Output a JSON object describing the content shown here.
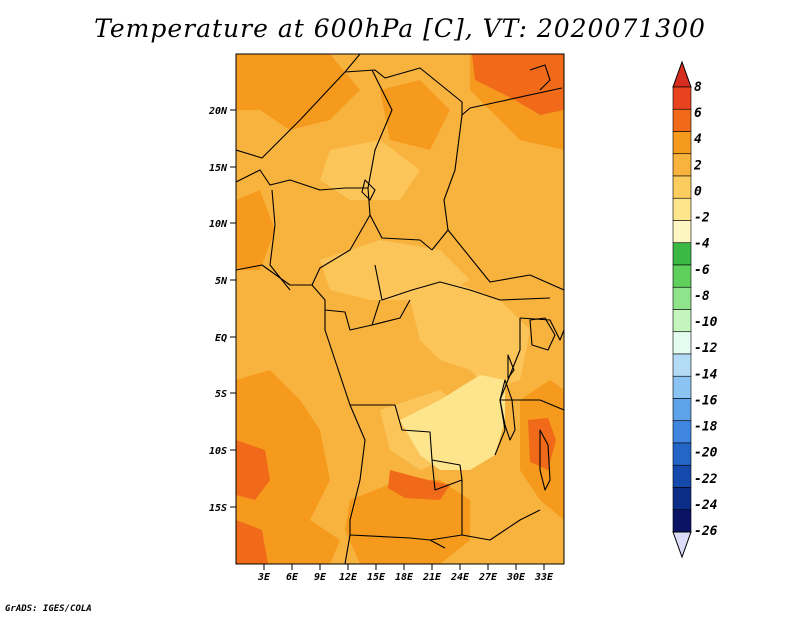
{
  "title": "Temperature at 600hPa [C], VT: 2020071300",
  "credit": "GrADS: IGES/COLA",
  "map": {
    "lat_labels": [
      "20N",
      "15N",
      "10N",
      "5N",
      "EQ",
      "5S",
      "10S",
      "15S"
    ],
    "lon_labels": [
      "3E",
      "6E",
      "9E",
      "12E",
      "15E",
      "18E",
      "21E",
      "24E",
      "27E",
      "30E",
      "33E"
    ],
    "lon_range": [
      0,
      35
    ],
    "lat_range": [
      -20,
      24.5
    ]
  },
  "colorbar": {
    "labels": [
      "8",
      "6",
      "4",
      "2",
      "0",
      "-2",
      "-4",
      "-6",
      "-8",
      "-10",
      "-12",
      "-14",
      "-16",
      "-18",
      "-20",
      "-22",
      "-24",
      "-26"
    ],
    "colors": [
      "#e8421e",
      "#f06a1a",
      "#f59a1c",
      "#f8b23e",
      "#fbcd5e",
      "#fde58e",
      "#fdf6c2",
      "#3cb944",
      "#5fd05c",
      "#8fe38a",
      "#c3f5bd",
      "#e4fbef",
      "#b3dbf6",
      "#8bc4f2",
      "#5ea3ea",
      "#3f86e0",
      "#2366c8",
      "#1549ac",
      "#0b2d88",
      "#0a1366"
    ],
    "top_arrow_color": "#d62d1e",
    "bottom_arrow_color": "#dcdcf8"
  }
}
